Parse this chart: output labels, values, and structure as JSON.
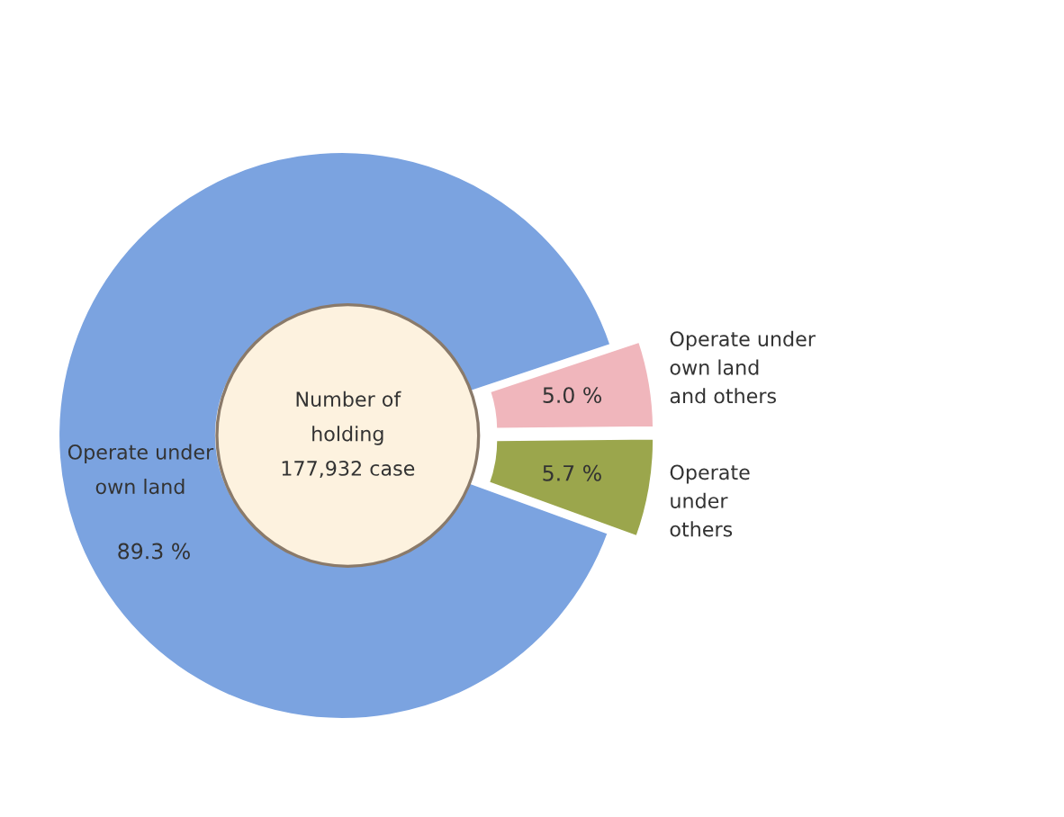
{
  "chart_data": {
    "type": "donut",
    "categories": [
      "Operate under\nown land",
      "Operate under\nown land\nand others",
      "Operate\nunder\nothers"
    ],
    "values": [
      89.3,
      5.0,
      5.7
    ],
    "colors": [
      "#7ba3e0",
      "#f0b6bc",
      "#9ba64c"
    ],
    "value_labels": [
      "89.3 %",
      "5.0 %",
      "5.7 %"
    ],
    "annotations": [
      "Number of\nholding\n177,932 case"
    ],
    "legend": false
  }
}
